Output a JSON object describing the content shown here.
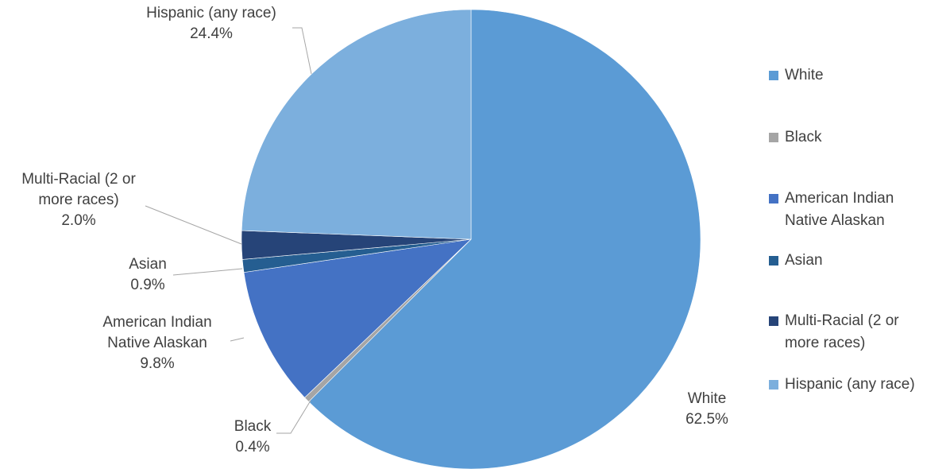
{
  "chart_data": {
    "type": "pie",
    "title": "",
    "slices": [
      {
        "name": "White",
        "name_lines": [
          "White"
        ],
        "value": 62.5,
        "label": "62.5%",
        "color": "#5b9bd5"
      },
      {
        "name": "Black",
        "name_lines": [
          "Black"
        ],
        "value": 0.4,
        "label": "0.4%",
        "color": "#a5a5a5"
      },
      {
        "name": "American Indian Native Alaskan",
        "name_lines": [
          "American Indian",
          "Native Alaskan"
        ],
        "value": 9.8,
        "label": "9.8%",
        "color": "#4472c4"
      },
      {
        "name": "Asian",
        "name_lines": [
          "Asian"
        ],
        "value": 0.9,
        "label": "0.9%",
        "color": "#255e91"
      },
      {
        "name": "Multi-Racial (2 or more races)",
        "name_lines": [
          "Multi-Racial (2 or",
          "more races)"
        ],
        "value": 2.0,
        "label": "2.0%",
        "color": "#264478"
      },
      {
        "name": "Hispanic (any race)",
        "name_lines": [
          "Hispanic (any race)"
        ],
        "value": 24.4,
        "label": "24.4%",
        "color": "#7cafdd"
      }
    ],
    "legend_position": "right",
    "start_angle": "12 o'clock, clockwise"
  }
}
